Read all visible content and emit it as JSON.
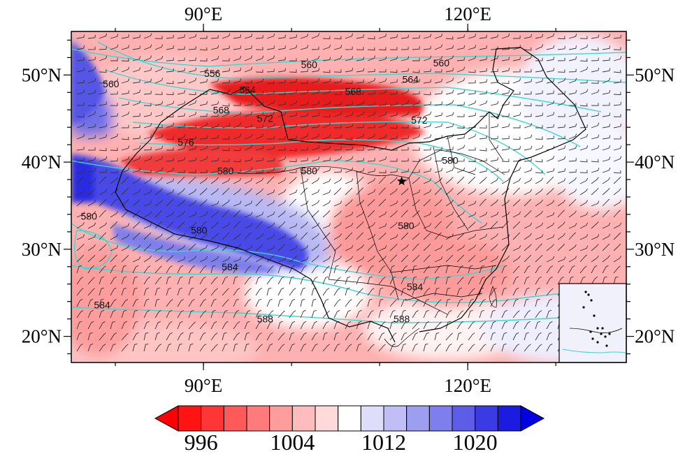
{
  "map": {
    "lon_range": [
      75,
      138
    ],
    "lat_range": [
      17,
      55
    ],
    "x_ticks": [
      {
        "lon": 90,
        "label": "90°E"
      },
      {
        "lon": 120,
        "label": "120°E"
      }
    ],
    "y_ticks": [
      {
        "lat": 50,
        "label": "50°N"
      },
      {
        "lat": 40,
        "label": "40°N"
      },
      {
        "lat": 30,
        "label": "30°N"
      },
      {
        "lat": 20,
        "label": "20°N"
      }
    ],
    "minor_lon_step": 10,
    "minor_lat_step": 2,
    "star_marker": {
      "lon": 112.5,
      "lat": 37.8
    },
    "contour_color": "#3fd6d0",
    "contours": [
      {
        "level": "556",
        "lon": 91,
        "lat": 50.2
      },
      {
        "level": "560",
        "lon": 102,
        "lat": 51.2
      },
      {
        "level": "560",
        "lon": 117,
        "lat": 51.4
      },
      {
        "level": "560",
        "lon": 79.5,
        "lat": 49.0
      },
      {
        "level": "564",
        "lon": 95,
        "lat": 48.3
      },
      {
        "level": "564",
        "lon": 113.5,
        "lat": 49.5
      },
      {
        "level": "568",
        "lon": 92,
        "lat": 46.0
      },
      {
        "level": "568",
        "lon": 107,
        "lat": 48.1
      },
      {
        "level": "572",
        "lon": 97,
        "lat": 45.0
      },
      {
        "level": "572",
        "lon": 114.5,
        "lat": 44.8
      },
      {
        "level": "576",
        "lon": 88,
        "lat": 42.3
      },
      {
        "level": "580",
        "lon": 92.5,
        "lat": 39.0
      },
      {
        "level": "580",
        "lon": 102,
        "lat": 39.0
      },
      {
        "level": "580",
        "lon": 118,
        "lat": 40.2
      },
      {
        "level": "580",
        "lon": 77,
        "lat": 33.8
      },
      {
        "level": "580",
        "lon": 89.5,
        "lat": 32.2
      },
      {
        "level": "580",
        "lon": 113,
        "lat": 32.7
      },
      {
        "level": "584",
        "lon": 93,
        "lat": 28.0
      },
      {
        "level": "584",
        "lon": 78.5,
        "lat": 23.6
      },
      {
        "level": "584",
        "lon": 114,
        "lat": 25.7
      },
      {
        "level": "588",
        "lon": 97,
        "lat": 22.0
      },
      {
        "level": "588",
        "lon": 112.5,
        "lat": 22.0
      }
    ]
  },
  "colorbar": {
    "colors": [
      "#ff1414",
      "#ff3636",
      "#ff5959",
      "#ff7b7b",
      "#ff9d9d",
      "#ffbcbc",
      "#ffdada",
      "#ffffff",
      "#dedefb",
      "#bfbff6",
      "#9e9ef1",
      "#7e7eec",
      "#5d5de8",
      "#3b3be4",
      "#1c1ce0"
    ],
    "over_color": "#0000e0",
    "under_color": "#ff0000",
    "labels": [
      {
        "index": 1,
        "text": "996"
      },
      {
        "index": 5,
        "text": "1004"
      },
      {
        "index": 9,
        "text": "1012"
      },
      {
        "index": 13,
        "text": "1020"
      }
    ]
  }
}
